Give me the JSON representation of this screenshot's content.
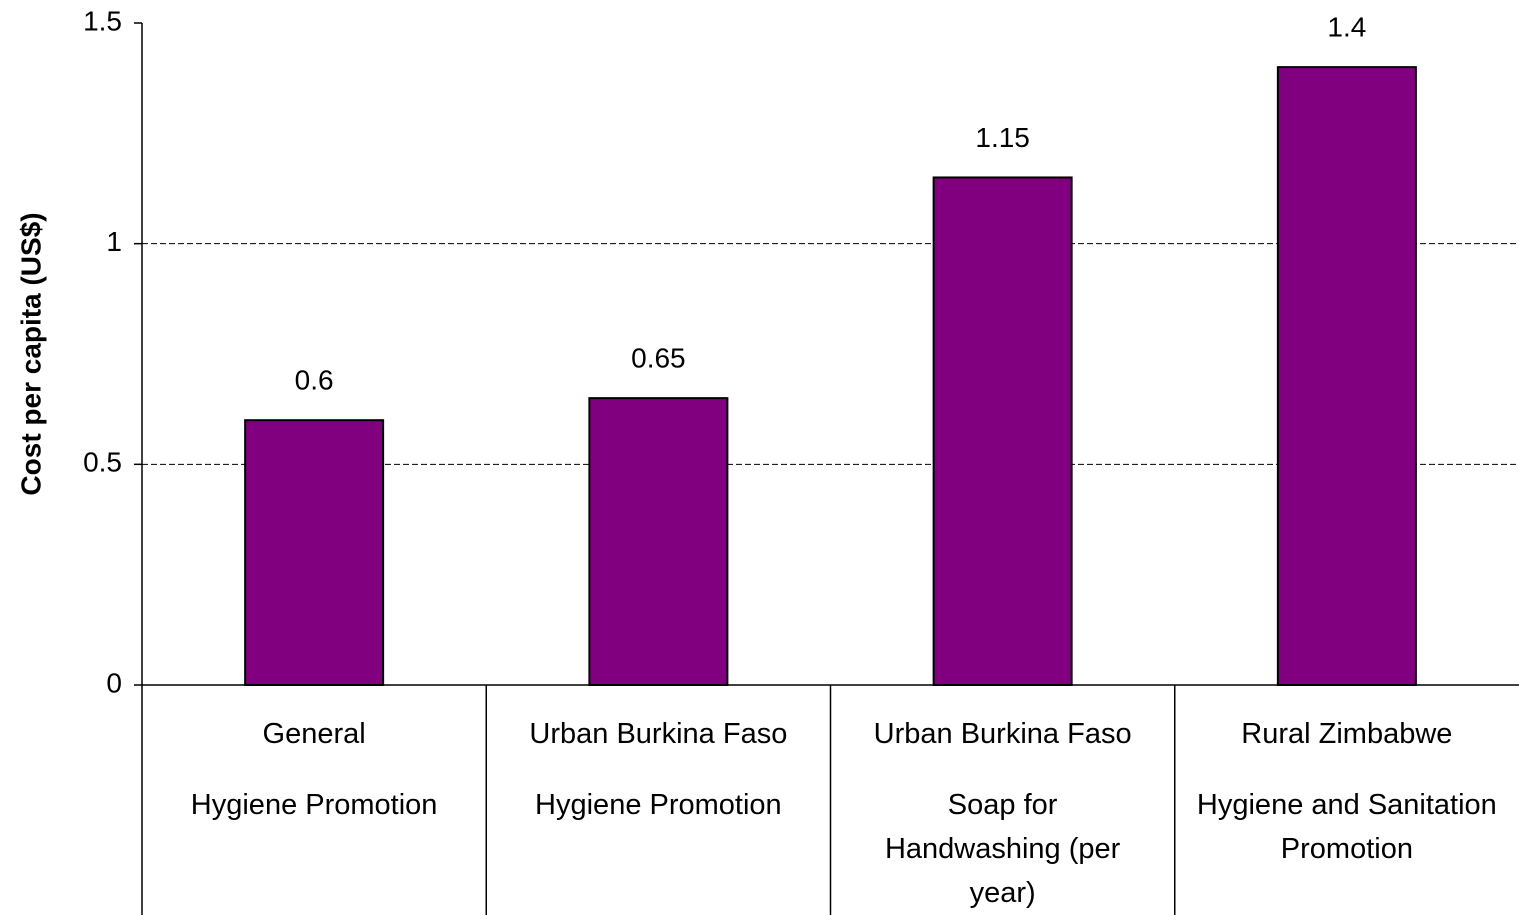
{
  "chart_data": {
    "type": "bar",
    "y_label": "Cost per capita (US$)",
    "categories": [
      "General",
      "Urban Burkina Faso",
      "Urban Burkina Faso",
      "Rural Zimbabwe"
    ],
    "subcategories": [
      "Hygiene Promotion",
      "Hygiene Promotion",
      "Soap for Handwashing (per year)",
      "Hygiene and Sanitation Promotion"
    ],
    "values": [
      0.6,
      0.65,
      1.15,
      1.4
    ],
    "color": "#800080",
    "ylim": [
      0,
      1.5
    ],
    "yticks": [
      0,
      0.5,
      1,
      1.5
    ],
    "grid": true
  }
}
